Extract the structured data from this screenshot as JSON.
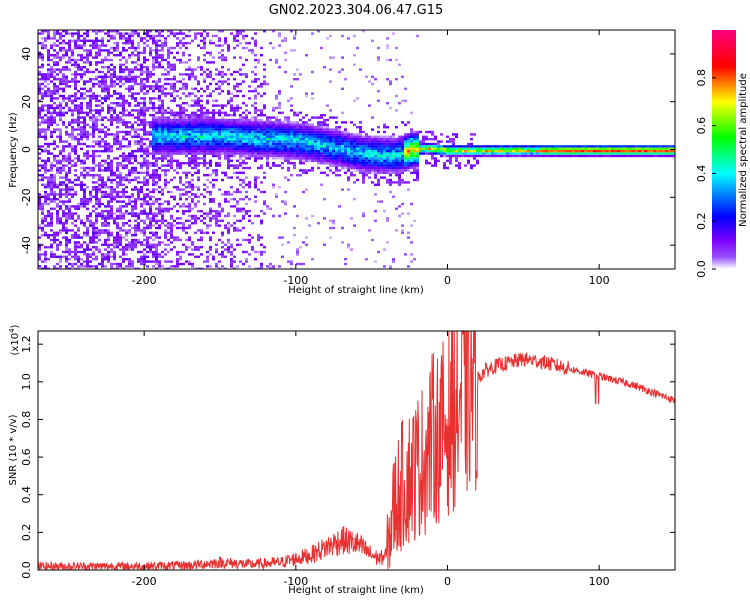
{
  "figure": {
    "title": "GN02.2023.304.06.47.G15"
  },
  "chart_data": [
    {
      "type": "heatmap",
      "title": "",
      "xlabel": "Height of straight line (km)",
      "ylabel": "Frequency (Hz)",
      "xlim": [
        -270,
        150
      ],
      "ylim": [
        -50,
        50
      ],
      "xticks": [
        -200,
        -100,
        0,
        100
      ],
      "yticks": [
        -40,
        -20,
        0,
        20,
        40
      ],
      "colorbar": {
        "label": "Normalized spectral amplitude",
        "range": [
          0,
          1
        ],
        "ticks": [
          "0.0",
          "0.2",
          "0.4",
          "0.6",
          "0.8"
        ],
        "colormap": [
          "#ffffff",
          "#7a00ff",
          "#0000ff",
          "#00ffff",
          "#00ff00",
          "#ffff00",
          "#ff0000",
          "#ff0080"
        ]
      },
      "ridge": {
        "description_points_x": [
          -190,
          -150,
          -120,
          -100,
          -80,
          -60,
          -45,
          -35,
          -25,
          -15,
          0,
          50,
          100,
          150
        ],
        "description_points_y": [
          6,
          6,
          5,
          4,
          2,
          -1,
          -2,
          -2,
          0,
          1,
          0,
          0,
          0,
          0
        ]
      }
    },
    {
      "type": "line",
      "title": "",
      "xlabel": "Height of straight line (km)",
      "ylabel": "SNR (10 * v/v)",
      "y_multiplier": "(x10",
      "y_multiplier_exp": "4",
      "y_multiplier_close": ")",
      "xlim": [
        -270,
        150
      ],
      "ylim": [
        0,
        1.27
      ],
      "xticks": [
        -200,
        -100,
        0,
        100
      ],
      "yticks": [
        "0.0",
        "0.2",
        "0.4",
        "0.6",
        "0.8",
        "1.0",
        "1.2"
      ],
      "color": "#e83030",
      "series": [
        {
          "x": [
            -270,
            -230,
            -200,
            -170,
            -150,
            -130,
            -110,
            -100,
            -90,
            -80,
            -70,
            -60,
            -50,
            -45,
            -40,
            -38,
            -35,
            -30,
            -25,
            -20,
            -15,
            -10,
            -5,
            0,
            5,
            10,
            15,
            20,
            25,
            30,
            40,
            50,
            60,
            70,
            80,
            90,
            95,
            100,
            110,
            120,
            130,
            140,
            150
          ],
          "values": [
            0.02,
            0.02,
            0.02,
            0.025,
            0.04,
            0.03,
            0.04,
            0.06,
            0.08,
            0.12,
            0.16,
            0.14,
            0.08,
            0.06,
            0.08,
            0.2,
            0.35,
            0.45,
            0.5,
            0.55,
            0.6,
            0.7,
            0.72,
            0.78,
            0.85,
            0.92,
            0.98,
            1.02,
            1.06,
            1.08,
            1.1,
            1.12,
            1.11,
            1.09,
            1.07,
            1.05,
            1.04,
            1.03,
            1.01,
            0.99,
            0.96,
            0.93,
            0.9
          ]
        }
      ]
    }
  ]
}
